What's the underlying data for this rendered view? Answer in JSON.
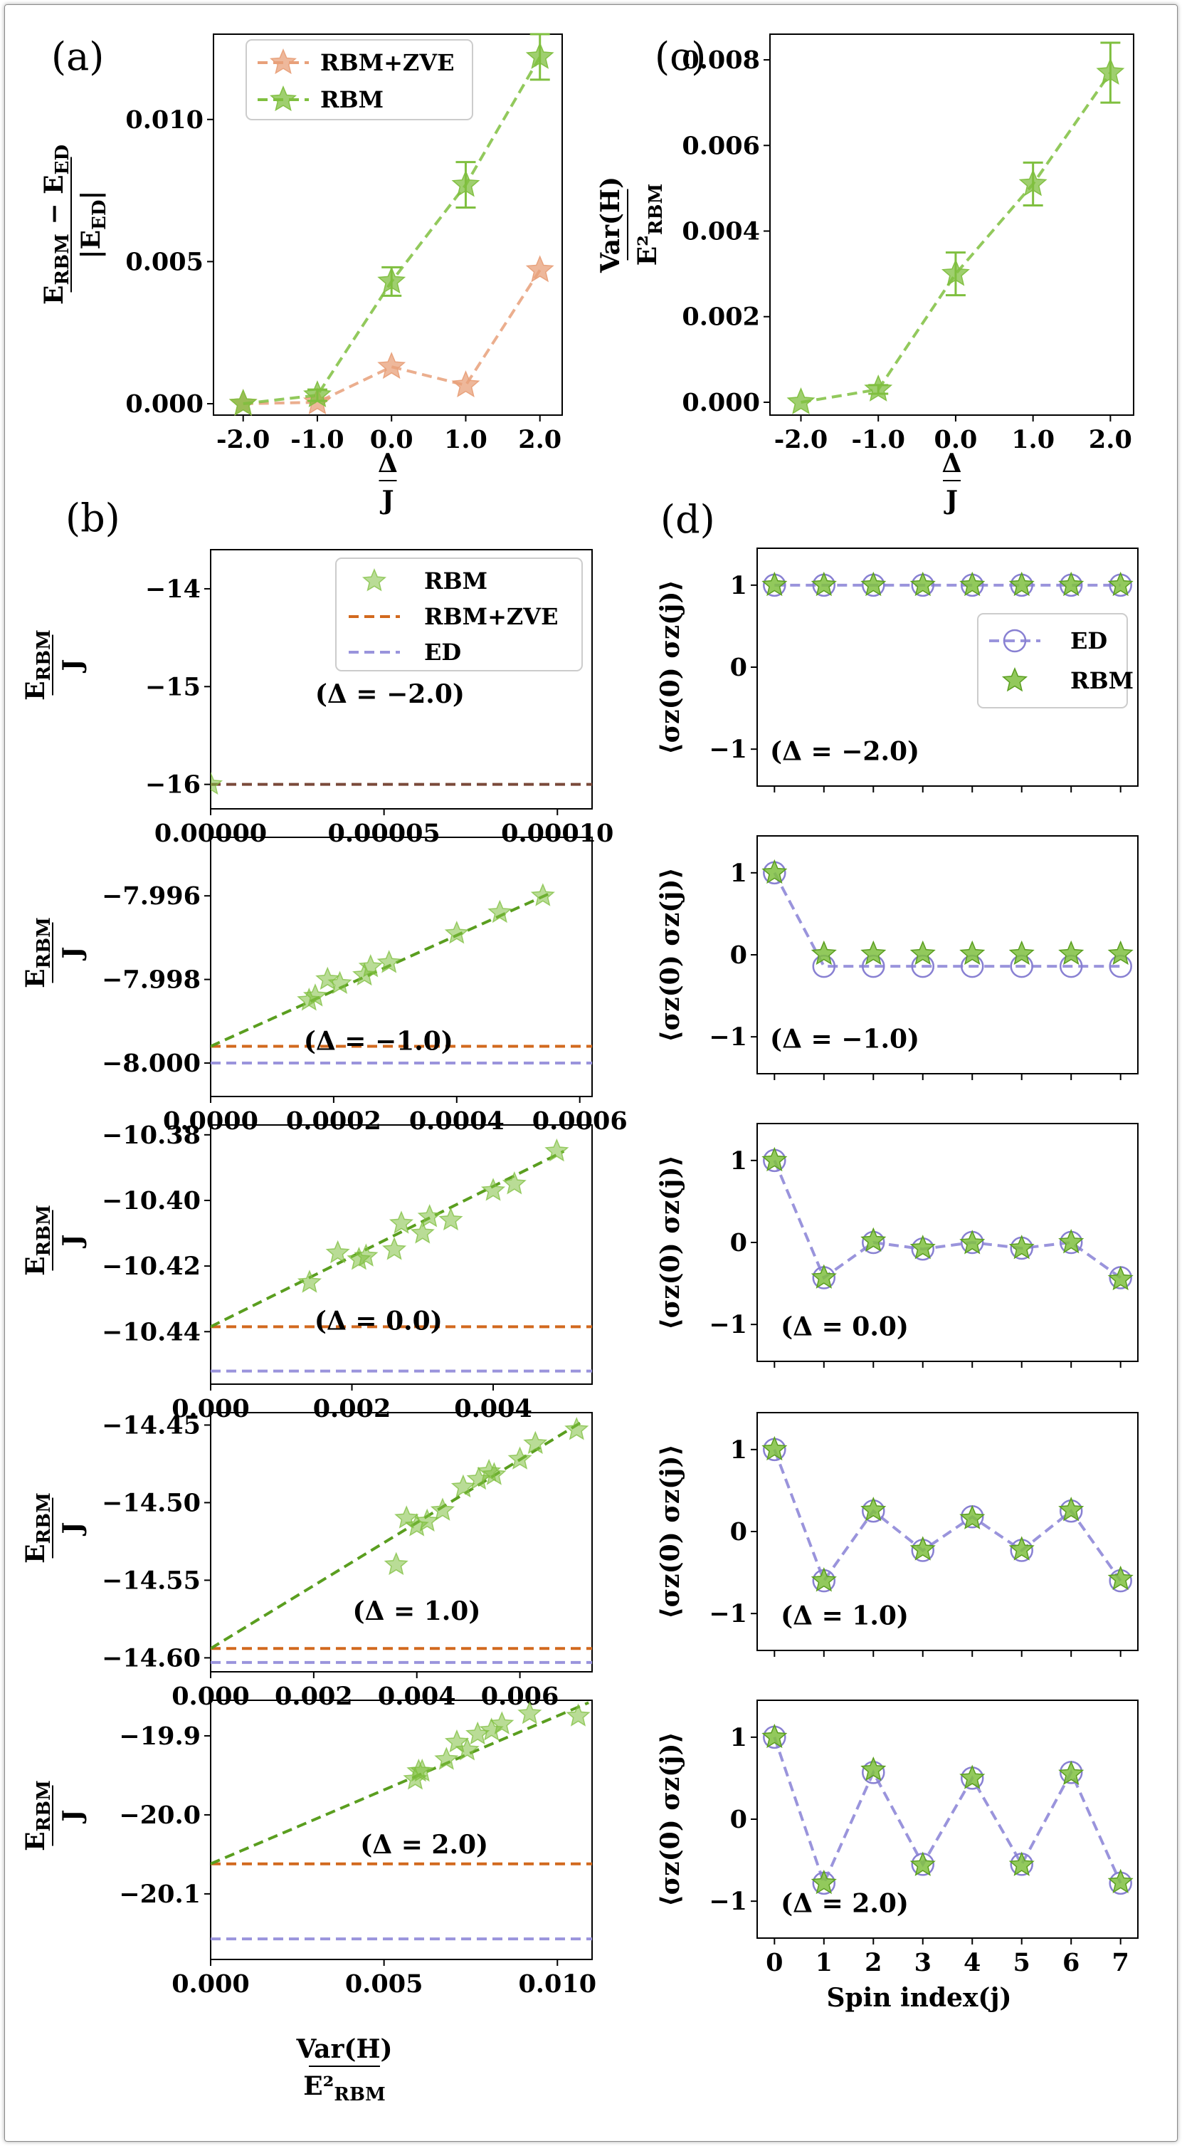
{
  "colors": {
    "rbm": "#7fbf3f",
    "rbm_dark": "#5a9e1f",
    "zve": "#e8a07a",
    "zve_line": "#d2691e",
    "ed": "#9a94dc",
    "ed_dark": "#8880d2",
    "overlap": "#7a4a3a"
  },
  "chart_data": [
    {
      "id": "a",
      "panel_label": "(a)",
      "type": "line",
      "x": [
        -2.0,
        -1.0,
        0.0,
        1.0,
        2.0
      ],
      "x_tick_labels": [
        "-2.0",
        "-1.0",
        "0.0",
        "1.0",
        "2.0"
      ],
      "xlabel": {
        "num": "Δ",
        "den": "J"
      },
      "ylabel": {
        "num": "E_RBM − E_ED",
        "den": "|E_ED|"
      },
      "xlim": [
        -2.4,
        2.3
      ],
      "ylim": [
        -0.0004,
        0.013
      ],
      "y_ticks": [
        0,
        0.005,
        0.01
      ],
      "y_tick_labels": [
        "0.000",
        "0.005",
        "0.010"
      ],
      "legend": {
        "position": "top-left",
        "entries": [
          "RBM+ZVE",
          "RBM"
        ]
      },
      "series": [
        {
          "name": "RBM+ZVE",
          "color_key": "zve",
          "values": [
            0.0,
            5e-05,
            0.0013,
            0.00065,
            0.0047
          ],
          "errors": [
            0,
            0,
            0,
            0,
            0
          ]
        },
        {
          "name": "RBM",
          "color_key": "rbm",
          "values": [
            0.0,
            0.0003,
            0.0043,
            0.0077,
            0.0122
          ],
          "errors": [
            0,
            0.0002,
            0.0005,
            0.0008,
            0.0008
          ]
        }
      ]
    },
    {
      "id": "c",
      "panel_label": "(c)",
      "type": "line",
      "x": [
        -2.0,
        -1.0,
        0.0,
        1.0,
        2.0
      ],
      "x_tick_labels": [
        "-2.0",
        "-1.0",
        "0.0",
        "1.0",
        "2.0"
      ],
      "xlabel": {
        "num": "Δ",
        "den": "J"
      },
      "ylabel": {
        "num": "Var(H)",
        "den": "E²_RBM"
      },
      "xlim": [
        -2.4,
        2.3
      ],
      "ylim": [
        -0.0003,
        0.0086
      ],
      "y_ticks": [
        0,
        0.002,
        0.004,
        0.006,
        0.008
      ],
      "y_tick_labels": [
        "0.000",
        "0.002",
        "0.004",
        "0.006",
        "0.008"
      ],
      "series": [
        {
          "name": "RBM",
          "color_key": "rbm",
          "values": [
            0.0,
            0.0003,
            0.003,
            0.0051,
            0.0077
          ],
          "errors": [
            0,
            0.0001,
            0.0005,
            0.0005,
            0.0007
          ]
        }
      ]
    },
    {
      "id": "b1",
      "panel_label": "(b)",
      "type": "scatter",
      "annotation": "(Δ = −2.0)",
      "xlim": [
        0,
        0.00011
      ],
      "ylim": [
        -16.25,
        -13.6
      ],
      "x_ticks": [
        0,
        5e-05,
        0.0001
      ],
      "x_tick_labels": [
        "0.00000",
        "0.00005",
        "0.00010"
      ],
      "y_ticks": [
        -16,
        -15,
        -14
      ],
      "y_tick_labels": [
        "−16",
        "−15",
        "−14"
      ],
      "ylabel": {
        "num": "E_RBM",
        "den": "J"
      },
      "legend": {
        "position": "top-right",
        "entries": [
          "RBM",
          "RBM+ZVE",
          "ED"
        ]
      },
      "points": [
        [
          0.0,
          -16.0
        ]
      ],
      "fit": null,
      "zve": -16.0,
      "ed": -16.0
    },
    {
      "id": "b2",
      "type": "scatter",
      "annotation": "(Δ = −1.0)",
      "xlim": [
        0,
        0.00062
      ],
      "ylim": [
        -8.0008,
        -7.9946
      ],
      "x_ticks": [
        0,
        0.0002,
        0.0004,
        0.0006
      ],
      "x_tick_labels": [
        "0.0000",
        "0.0002",
        "0.0004",
        "0.0006"
      ],
      "y_ticks": [
        -8.0,
        -7.998,
        -7.996
      ],
      "y_tick_labels": [
        "−8.000",
        "−7.998",
        "−7.996"
      ],
      "ylabel": {
        "num": "E_RBM",
        "den": "J"
      },
      "points": [
        [
          0.00016,
          -7.9985
        ],
        [
          0.00017,
          -7.9984
        ],
        [
          0.00019,
          -7.998
        ],
        [
          0.00021,
          -7.9981
        ],
        [
          0.00025,
          -7.9979
        ],
        [
          0.00026,
          -7.9977
        ],
        [
          0.00029,
          -7.9976
        ],
        [
          0.0004,
          -7.9969
        ],
        [
          0.00047,
          -7.9964
        ],
        [
          0.00054,
          -7.996
        ]
      ],
      "fit": [
        [
          0,
          -7.9996
        ],
        [
          0.00055,
          -7.99595
        ]
      ],
      "zve": -7.9996,
      "ed": -8.0
    },
    {
      "id": "b3",
      "type": "scatter",
      "annotation": "(Δ = 0.0)",
      "xlim": [
        0,
        0.0054
      ],
      "ylim": [
        -10.456,
        -10.377
      ],
      "x_ticks": [
        0,
        0.002,
        0.004
      ],
      "x_tick_labels": [
        "0.000",
        "0.002",
        "0.004"
      ],
      "y_ticks": [
        -10.44,
        -10.42,
        -10.4,
        -10.38
      ],
      "y_tick_labels": [
        "−10.44",
        "−10.42",
        "−10.40",
        "−10.38"
      ],
      "ylabel": {
        "num": "E_RBM",
        "den": "J"
      },
      "points": [
        [
          0.0014,
          -10.425
        ],
        [
          0.0018,
          -10.416
        ],
        [
          0.0021,
          -10.418
        ],
        [
          0.0022,
          -10.417
        ],
        [
          0.0026,
          -10.415
        ],
        [
          0.0027,
          -10.407
        ],
        [
          0.003,
          -10.41
        ],
        [
          0.0031,
          -10.405
        ],
        [
          0.0034,
          -10.406
        ],
        [
          0.004,
          -10.397
        ],
        [
          0.0043,
          -10.395
        ],
        [
          0.0049,
          -10.385
        ]
      ],
      "fit": [
        [
          0,
          -10.4385
        ],
        [
          0.005,
          -10.385
        ]
      ],
      "zve": -10.4385,
      "ed": -10.452
    },
    {
      "id": "b4",
      "type": "scatter",
      "annotation": "(Δ = 1.0)",
      "xlim": [
        0,
        0.0074
      ],
      "ylim": [
        -14.609,
        -14.442
      ],
      "x_ticks": [
        0,
        0.002,
        0.004,
        0.006
      ],
      "x_tick_labels": [
        "0.000",
        "0.002",
        "0.004",
        "0.006"
      ],
      "y_ticks": [
        -14.6,
        -14.55,
        -14.5,
        -14.45
      ],
      "y_tick_labels": [
        "−14.60",
        "−14.55",
        "−14.50",
        "−14.45"
      ],
      "ylabel": {
        "num": "E_RBM",
        "den": "J"
      },
      "points": [
        [
          0.0036,
          -14.54
        ],
        [
          0.0038,
          -14.51
        ],
        [
          0.004,
          -14.515
        ],
        [
          0.0042,
          -14.512
        ],
        [
          0.0045,
          -14.505
        ],
        [
          0.0049,
          -14.49
        ],
        [
          0.0052,
          -14.485
        ],
        [
          0.0054,
          -14.48
        ],
        [
          0.0055,
          -14.482
        ],
        [
          0.006,
          -14.472
        ],
        [
          0.0063,
          -14.462
        ],
        [
          0.0071,
          -14.453
        ]
      ],
      "fit": [
        [
          0,
          -14.594
        ],
        [
          0.0072,
          -14.448
        ]
      ],
      "zve": -14.594,
      "ed": -14.603
    },
    {
      "id": "b5",
      "type": "scatter",
      "annotation": "(Δ = 2.0)",
      "xlim": [
        0,
        0.011
      ],
      "ylim": [
        -20.183,
        -19.855
      ],
      "x_ticks": [
        0,
        0.005,
        0.01
      ],
      "x_tick_labels": [
        "0.000",
        "0.005",
        "0.010"
      ],
      "y_ticks": [
        -20.1,
        -20.0,
        -19.9
      ],
      "y_tick_labels": [
        "−20.1",
        "−20.0",
        "−19.9"
      ],
      "ylabel": {
        "num": "E_RBM",
        "den": "J"
      },
      "xlabel": {
        "num": "Var(H)",
        "den": "E²_RBM"
      },
      "points": [
        [
          0.0059,
          -19.955
        ],
        [
          0.006,
          -19.945
        ],
        [
          0.0061,
          -19.945
        ],
        [
          0.0068,
          -19.93
        ],
        [
          0.0071,
          -19.908
        ],
        [
          0.0074,
          -19.918
        ],
        [
          0.0077,
          -19.898
        ],
        [
          0.0081,
          -19.893
        ],
        [
          0.0084,
          -19.885
        ],
        [
          0.0092,
          -19.872
        ],
        [
          0.0106,
          -19.875
        ]
      ],
      "fit": [
        [
          0,
          -20.062
        ],
        [
          0.0109,
          -19.858
        ]
      ],
      "zve": -20.062,
      "ed": -20.157
    },
    {
      "id": "d1",
      "panel_label": "(d)",
      "type": "line",
      "annotation": "(Δ = −2.0)",
      "x": [
        0,
        1,
        2,
        3,
        4,
        5,
        6,
        7
      ],
      "xlim": [
        -0.35,
        7.35
      ],
      "ylim": [
        -1.45,
        1.45
      ],
      "y_ticks": [
        -1,
        0,
        1
      ],
      "y_tick_labels": [
        "−1",
        "0",
        "1"
      ],
      "ylabel": "⟨σz(0) σz(j)⟩",
      "legend": {
        "position": "center-right",
        "entries": [
          "ED",
          "RBM"
        ]
      },
      "ed": [
        1,
        1,
        1,
        1,
        1,
        1,
        1,
        1
      ],
      "rbm": [
        1,
        1,
        1,
        1,
        1,
        1,
        1,
        1
      ]
    },
    {
      "id": "d2",
      "type": "line",
      "annotation": "(Δ = −1.0)",
      "x": [
        0,
        1,
        2,
        3,
        4,
        5,
        6,
        7
      ],
      "xlim": [
        -0.35,
        7.35
      ],
      "ylim": [
        -1.45,
        1.45
      ],
      "y_ticks": [
        -1,
        0,
        1
      ],
      "y_tick_labels": [
        "−1",
        "0",
        "1"
      ],
      "ylabel": "⟨σz(0) σz(j)⟩",
      "ed": [
        1,
        -0.14,
        -0.14,
        -0.14,
        -0.14,
        -0.14,
        -0.14,
        -0.14
      ],
      "rbm": [
        1,
        0.01,
        0.01,
        0.01,
        0.01,
        0.01,
        0.01,
        0.01
      ]
    },
    {
      "id": "d3",
      "type": "line",
      "annotation": "(Δ = 0.0)",
      "x": [
        0,
        1,
        2,
        3,
        4,
        5,
        6,
        7
      ],
      "xlim": [
        -0.35,
        7.35
      ],
      "ylim": [
        -1.45,
        1.45
      ],
      "y_ticks": [
        -1,
        0,
        1
      ],
      "y_tick_labels": [
        "−1",
        "0",
        "1"
      ],
      "ylabel": "⟨σz(0) σz(j)⟩",
      "ed": [
        1,
        -0.43,
        0.0,
        -0.08,
        0.0,
        -0.07,
        0.0,
        -0.43
      ],
      "rbm": [
        1,
        -0.43,
        0.02,
        -0.07,
        -0.01,
        -0.07,
        0.0,
        -0.45
      ]
    },
    {
      "id": "d4",
      "type": "line",
      "annotation": "(Δ = 1.0)",
      "x": [
        0,
        1,
        2,
        3,
        4,
        5,
        6,
        7
      ],
      "xlim": [
        -0.35,
        7.35
      ],
      "ylim": [
        -1.45,
        1.45
      ],
      "y_ticks": [
        -1,
        0,
        1
      ],
      "y_tick_labels": [
        "−1",
        "0",
        "1"
      ],
      "ylabel": "⟨σz(0) σz(j)⟩",
      "ed": [
        1,
        -0.6,
        0.25,
        -0.23,
        0.18,
        -0.23,
        0.25,
        -0.6
      ],
      "rbm": [
        1,
        -0.6,
        0.26,
        -0.22,
        0.16,
        -0.22,
        0.26,
        -0.58
      ]
    },
    {
      "id": "d5",
      "type": "line",
      "annotation": "(Δ = 2.0)",
      "x": [
        0,
        1,
        2,
        3,
        4,
        5,
        6,
        7
      ],
      "xlim": [
        -0.35,
        7.35
      ],
      "ylim": [
        -1.45,
        1.45
      ],
      "y_ticks": [
        -1,
        0,
        1
      ],
      "y_tick_labels": [
        "−1",
        "0",
        "1"
      ],
      "x_tick_labels": [
        "0",
        "1",
        "2",
        "3",
        "4",
        "5",
        "6",
        "7"
      ],
      "ylabel": "⟨σz(0) σz(j)⟩",
      "xlabel": "Spin index(j)",
      "ed": [
        1,
        -0.78,
        0.57,
        -0.55,
        0.5,
        -0.55,
        0.57,
        -0.78
      ],
      "rbm": [
        1,
        -0.78,
        0.6,
        -0.56,
        0.5,
        -0.56,
        0.55,
        -0.77
      ]
    }
  ]
}
